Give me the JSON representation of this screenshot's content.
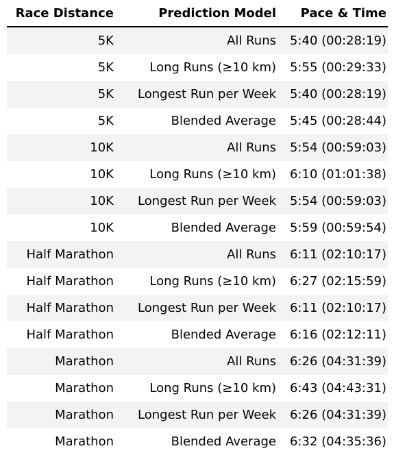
{
  "chart_data": {
    "type": "table",
    "columns": [
      "Race Distance",
      "Prediction Model",
      "Pace & Time"
    ],
    "rows": [
      [
        "5K",
        "All Runs",
        "5:40 (00:28:19)"
      ],
      [
        "5K",
        "Long Runs (≥10 km)",
        "5:55 (00:29:33)"
      ],
      [
        "5K",
        "Longest Run per Week",
        "5:40 (00:28:19)"
      ],
      [
        "5K",
        "Blended Average",
        "5:45 (00:28:44)"
      ],
      [
        "10K",
        "All Runs",
        "5:54 (00:59:03)"
      ],
      [
        "10K",
        "Long Runs (≥10 km)",
        "6:10 (01:01:38)"
      ],
      [
        "10K",
        "Longest Run per Week",
        "5:54 (00:59:03)"
      ],
      [
        "10K",
        "Blended Average",
        "5:59 (00:59:54)"
      ],
      [
        "Half Marathon",
        "All Runs",
        "6:11 (02:10:17)"
      ],
      [
        "Half Marathon",
        "Long Runs (≥10 km)",
        "6:27 (02:15:59)"
      ],
      [
        "Half Marathon",
        "Longest Run per Week",
        "6:11 (02:10:17)"
      ],
      [
        "Half Marathon",
        "Blended Average",
        "6:16 (02:12:11)"
      ],
      [
        "Marathon",
        "All Runs",
        "6:26 (04:31:39)"
      ],
      [
        "Marathon",
        "Long Runs (≥10 km)",
        "6:43 (04:43:31)"
      ],
      [
        "Marathon",
        "Longest Run per Week",
        "6:26 (04:31:39)"
      ],
      [
        "Marathon",
        "Blended Average",
        "6:32 (04:35:36)"
      ]
    ],
    "colors": {
      "stripe": "#f3f3f3",
      "background": "#ffffff",
      "text": "#000000",
      "header_rule": "#000000"
    }
  }
}
